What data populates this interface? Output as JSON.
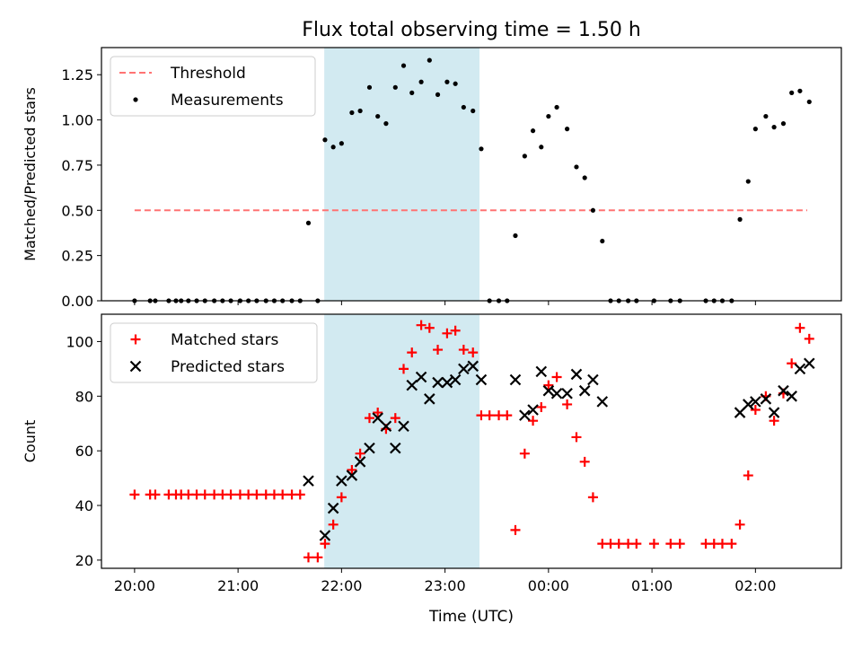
{
  "chart_data": {
    "type": "scatter",
    "title": "Flux total observing time = 1.50 h",
    "xlabel": "Time (UTC)",
    "x_unit": "hours since 20:00 UTC",
    "xlim": [
      -0.32,
      6.83
    ],
    "x_ticks": [
      {
        "at": 0,
        "label": "20:00"
      },
      {
        "at": 1,
        "label": "21:00"
      },
      {
        "at": 2,
        "label": "22:00"
      },
      {
        "at": 3,
        "label": "23:00"
      },
      {
        "at": 4,
        "label": "00:00"
      },
      {
        "at": 5,
        "label": "01:00"
      },
      {
        "at": 6,
        "label": "02:00"
      }
    ],
    "shaded_span": {
      "x_start": 1.833,
      "x_end": 3.333,
      "color": "#add8e6"
    },
    "panels": [
      {
        "ylabel": "Matched/Predicted stars",
        "ylim": [
          0,
          1.4
        ],
        "y_ticks": [
          {
            "at": 0.0,
            "label": "0.00"
          },
          {
            "at": 0.25,
            "label": "0.25"
          },
          {
            "at": 0.5,
            "label": "0.50"
          },
          {
            "at": 0.75,
            "label": "0.75"
          },
          {
            "at": 1.0,
            "label": "1.00"
          },
          {
            "at": 1.25,
            "label": "1.25"
          }
        ],
        "legend_position": "upper-left",
        "series": [
          {
            "name": "Threshold",
            "kind": "dashed-line",
            "color": "#ff7373",
            "points": [
              [
                0,
                0.5
              ],
              [
                6.5,
                0.5
              ]
            ]
          },
          {
            "name": "Measurements",
            "kind": "dot",
            "color": "#000000",
            "points": [
              [
                0.0,
                0
              ],
              [
                0.15,
                0
              ],
              [
                0.2,
                0
              ],
              [
                0.33,
                0
              ],
              [
                0.4,
                0
              ],
              [
                0.45,
                0
              ],
              [
                0.52,
                0
              ],
              [
                0.6,
                0
              ],
              [
                0.68,
                0
              ],
              [
                0.77,
                0
              ],
              [
                0.85,
                0
              ],
              [
                0.93,
                0
              ],
              [
                1.02,
                0
              ],
              [
                1.1,
                0
              ],
              [
                1.18,
                0
              ],
              [
                1.27,
                0
              ],
              [
                1.35,
                0
              ],
              [
                1.43,
                0
              ],
              [
                1.52,
                0
              ],
              [
                1.6,
                0
              ],
              [
                1.68,
                0.43
              ],
              [
                1.77,
                0
              ],
              [
                1.84,
                0.89
              ],
              [
                1.92,
                0.85
              ],
              [
                2.0,
                0.87
              ],
              [
                2.1,
                1.04
              ],
              [
                2.18,
                1.05
              ],
              [
                2.27,
                1.18
              ],
              [
                2.35,
                1.02
              ],
              [
                2.43,
                0.98
              ],
              [
                2.52,
                1.18
              ],
              [
                2.6,
                1.3
              ],
              [
                2.68,
                1.15
              ],
              [
                2.77,
                1.21
              ],
              [
                2.85,
                1.33
              ],
              [
                2.93,
                1.14
              ],
              [
                3.02,
                1.21
              ],
              [
                3.1,
                1.2
              ],
              [
                3.18,
                1.07
              ],
              [
                3.27,
                1.05
              ],
              [
                3.35,
                0.84
              ],
              [
                3.43,
                0
              ],
              [
                3.52,
                0
              ],
              [
                3.6,
                0
              ],
              [
                3.68,
                0.36
              ],
              [
                3.77,
                0.8
              ],
              [
                3.85,
                0.94
              ],
              [
                3.93,
                0.85
              ],
              [
                4.0,
                1.02
              ],
              [
                4.08,
                1.07
              ],
              [
                4.18,
                0.95
              ],
              [
                4.27,
                0.74
              ],
              [
                4.35,
                0.68
              ],
              [
                4.43,
                0.5
              ],
              [
                4.52,
                0.33
              ],
              [
                4.6,
                0
              ],
              [
                4.68,
                0
              ],
              [
                4.77,
                0
              ],
              [
                4.85,
                0
              ],
              [
                5.02,
                0
              ],
              [
                5.18,
                0
              ],
              [
                5.27,
                0
              ],
              [
                5.52,
                0
              ],
              [
                5.6,
                0
              ],
              [
                5.68,
                0
              ],
              [
                5.77,
                0
              ],
              [
                5.85,
                0.45
              ],
              [
                5.93,
                0.66
              ],
              [
                6.0,
                0.95
              ],
              [
                6.1,
                1.02
              ],
              [
                6.18,
                0.96
              ],
              [
                6.27,
                0.98
              ],
              [
                6.35,
                1.15
              ],
              [
                6.43,
                1.16
              ],
              [
                6.52,
                1.1
              ]
            ]
          }
        ]
      },
      {
        "ylabel": "Count",
        "ylim": [
          17,
          110
        ],
        "y_ticks": [
          {
            "at": 20,
            "label": "20"
          },
          {
            "at": 40,
            "label": "40"
          },
          {
            "at": 60,
            "label": "60"
          },
          {
            "at": 80,
            "label": "80"
          },
          {
            "at": 100,
            "label": "100"
          }
        ],
        "legend_position": "upper-left",
        "series": [
          {
            "name": "Matched stars",
            "kind": "plus",
            "color": "#ff0000",
            "points": [
              [
                0.0,
                44
              ],
              [
                0.15,
                44
              ],
              [
                0.2,
                44
              ],
              [
                0.33,
                44
              ],
              [
                0.4,
                44
              ],
              [
                0.45,
                44
              ],
              [
                0.52,
                44
              ],
              [
                0.6,
                44
              ],
              [
                0.68,
                44
              ],
              [
                0.77,
                44
              ],
              [
                0.85,
                44
              ],
              [
                0.93,
                44
              ],
              [
                1.02,
                44
              ],
              [
                1.1,
                44
              ],
              [
                1.18,
                44
              ],
              [
                1.27,
                44
              ],
              [
                1.35,
                44
              ],
              [
                1.43,
                44
              ],
              [
                1.52,
                44
              ],
              [
                1.6,
                44
              ],
              [
                1.68,
                21
              ],
              [
                1.77,
                21
              ],
              [
                1.84,
                26
              ],
              [
                1.92,
                33
              ],
              [
                2.0,
                43
              ],
              [
                2.1,
                53
              ],
              [
                2.18,
                59
              ],
              [
                2.27,
                72
              ],
              [
                2.35,
                74
              ],
              [
                2.43,
                68
              ],
              [
                2.52,
                72
              ],
              [
                2.6,
                90
              ],
              [
                2.68,
                96
              ],
              [
                2.77,
                106
              ],
              [
                2.85,
                105
              ],
              [
                2.93,
                97
              ],
              [
                3.02,
                103
              ],
              [
                3.1,
                104
              ],
              [
                3.18,
                97
              ],
              [
                3.27,
                96
              ],
              [
                3.35,
                73
              ],
              [
                3.43,
                73
              ],
              [
                3.52,
                73
              ],
              [
                3.6,
                73
              ],
              [
                3.68,
                31
              ],
              [
                3.77,
                59
              ],
              [
                3.85,
                71
              ],
              [
                3.93,
                76
              ],
              [
                4.0,
                84
              ],
              [
                4.08,
                87
              ],
              [
                4.18,
                77
              ],
              [
                4.27,
                65
              ],
              [
                4.35,
                56
              ],
              [
                4.43,
                43
              ],
              [
                4.52,
                26
              ],
              [
                4.6,
                26
              ],
              [
                4.68,
                26
              ],
              [
                4.77,
                26
              ],
              [
                4.85,
                26
              ],
              [
                5.02,
                26
              ],
              [
                5.18,
                26
              ],
              [
                5.27,
                26
              ],
              [
                5.52,
                26
              ],
              [
                5.6,
                26
              ],
              [
                5.68,
                26
              ],
              [
                5.77,
                26
              ],
              [
                5.85,
                33
              ],
              [
                5.93,
                51
              ],
              [
                6.0,
                75
              ],
              [
                6.1,
                80
              ],
              [
                6.18,
                71
              ],
              [
                6.27,
                81
              ],
              [
                6.35,
                92
              ],
              [
                6.43,
                105
              ],
              [
                6.52,
                101
              ]
            ]
          },
          {
            "name": "Predicted stars",
            "kind": "x",
            "color": "#000000",
            "points": [
              [
                1.68,
                49
              ],
              [
                1.84,
                29
              ],
              [
                1.92,
                39
              ],
              [
                2.0,
                49
              ],
              [
                2.1,
                51
              ],
              [
                2.18,
                56
              ],
              [
                2.27,
                61
              ],
              [
                2.35,
                72
              ],
              [
                2.43,
                69
              ],
              [
                2.52,
                61
              ],
              [
                2.6,
                69
              ],
              [
                2.68,
                84
              ],
              [
                2.77,
                87
              ],
              [
                2.85,
                79
              ],
              [
                2.93,
                85
              ],
              [
                3.02,
                85
              ],
              [
                3.1,
                86
              ],
              [
                3.18,
                90
              ],
              [
                3.27,
                91
              ],
              [
                3.35,
                86
              ],
              [
                3.68,
                86
              ],
              [
                3.77,
                73
              ],
              [
                3.85,
                75
              ],
              [
                3.93,
                89
              ],
              [
                4.0,
                82
              ],
              [
                4.08,
                81
              ],
              [
                4.18,
                81
              ],
              [
                4.27,
                88
              ],
              [
                4.35,
                82
              ],
              [
                4.43,
                86
              ],
              [
                4.52,
                78
              ],
              [
                5.85,
                74
              ],
              [
                5.93,
                77
              ],
              [
                6.0,
                78
              ],
              [
                6.1,
                79
              ],
              [
                6.18,
                74
              ],
              [
                6.27,
                82
              ],
              [
                6.35,
                80
              ],
              [
                6.43,
                90
              ],
              [
                6.52,
                92
              ]
            ]
          }
        ]
      }
    ]
  }
}
